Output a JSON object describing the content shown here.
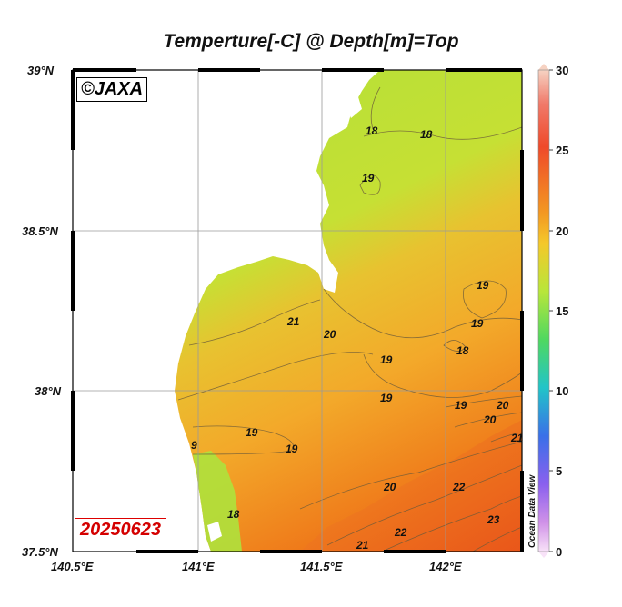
{
  "title": "Temperture[-C] @ Depth[m]=Top",
  "credit": "©JAXA",
  "date": "20250623",
  "software_label": "Ocean Data View",
  "y_axis_labels": [
    "39°N",
    "38.5°N",
    "38°N",
    "37.5°N"
  ],
  "x_axis_labels": [
    "140.5°E",
    "141°E",
    "141.5°E",
    "142°E"
  ],
  "colorbar": {
    "ticks": [
      "30",
      "25",
      "20",
      "15",
      "10",
      "5",
      "0"
    ],
    "colors": [
      "#f5c8b0",
      "#ef6a55",
      "#f0601a",
      "#f6b22a",
      "#c8e838",
      "#58d85a",
      "#22c8c8",
      "#3a6fe8",
      "#8a5af0",
      "#d28ae6",
      "#f6d6f6"
    ]
  },
  "contour_labels": [
    "18",
    "18",
    "19",
    "19",
    "19",
    "18",
    "21",
    "20",
    "19",
    "19",
    "19",
    "20",
    "20",
    "21",
    "19",
    "19",
    "20",
    "22",
    "21",
    "22",
    "23",
    "18",
    "9"
  ],
  "colors": {
    "land": "#ffffff",
    "sea_cool": "#b6e23a",
    "sea_warm": "#f5ab2c",
    "sea_hot": "#ee6a18"
  }
}
